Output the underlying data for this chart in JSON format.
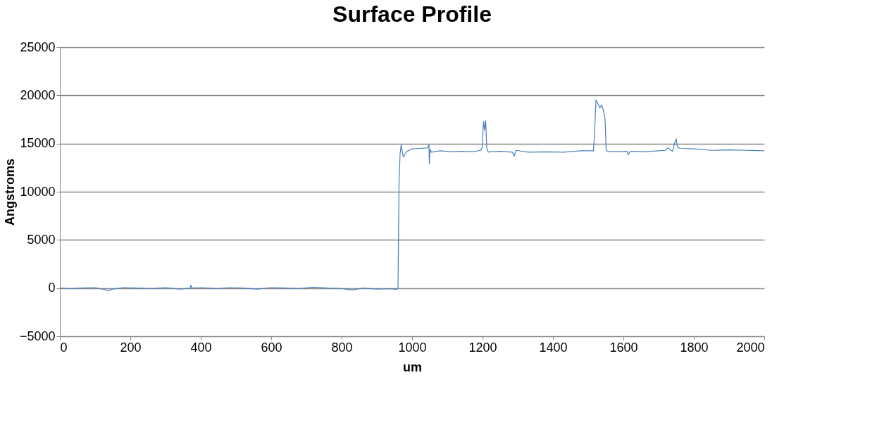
{
  "chart_data": {
    "type": "line",
    "title": "Surface Profile",
    "xlabel": "um",
    "ylabel": "Angstroms",
    "x": [
      0,
      30,
      60,
      100,
      140,
      150,
      180,
      220,
      260,
      300,
      340,
      370,
      372,
      375,
      400,
      450,
      480,
      520,
      560,
      600,
      640,
      680,
      720,
      760,
      800,
      830,
      860,
      900,
      940,
      955,
      960,
      963,
      966,
      969,
      975,
      985,
      1000,
      1020,
      1045,
      1048,
      1049,
      1051,
      1055,
      1080,
      1110,
      1140,
      1170,
      1195,
      1199,
      1203,
      1206,
      1209,
      1212,
      1216,
      1220,
      1250,
      1285,
      1290,
      1295,
      1330,
      1380,
      1430,
      1480,
      1515,
      1518,
      1522,
      1527,
      1533,
      1538,
      1543,
      1548,
      1551,
      1555,
      1580,
      1610,
      1614,
      1620,
      1660,
      1700,
      1720,
      1725,
      1740,
      1745,
      1750,
      1753,
      1760,
      1800,
      1850,
      1900,
      1950,
      2000
    ],
    "series": [
      {
        "color": "#4a7ebb",
        "values": [
          0,
          -50,
          0,
          50,
          -250,
          -100,
          50,
          0,
          -50,
          50,
          -100,
          0,
          300,
          0,
          50,
          -50,
          50,
          0,
          -100,
          50,
          0,
          -50,
          100,
          0,
          -50,
          -200,
          0,
          -100,
          -50,
          -150,
          0,
          11000,
          14000,
          14850,
          13600,
          14200,
          14450,
          14500,
          14550,
          14900,
          12900,
          14400,
          14100,
          14250,
          14150,
          14200,
          14150,
          14300,
          14600,
          17300,
          16400,
          17400,
          14600,
          14100,
          14150,
          14200,
          14100,
          13700,
          14300,
          14100,
          14150,
          14100,
          14250,
          14250,
          16000,
          19500,
          19200,
          18700,
          19000,
          18500,
          17500,
          14300,
          14200,
          14150,
          14200,
          13850,
          14200,
          14150,
          14250,
          14300,
          14550,
          14200,
          15000,
          15500,
          14700,
          14500,
          14450,
          14300,
          14350,
          14300,
          14250
        ]
      }
    ],
    "xlim": [
      0,
      2000
    ],
    "ylim": [
      -5000,
      25000
    ],
    "xticks": [
      0,
      200,
      400,
      600,
      800,
      1000,
      1200,
      1400,
      1600,
      1800,
      2000
    ],
    "yticks": [
      -5000,
      0,
      5000,
      10000,
      15000,
      20000,
      25000
    ],
    "grid": "y",
    "marker": "none",
    "line_style": "solid"
  }
}
